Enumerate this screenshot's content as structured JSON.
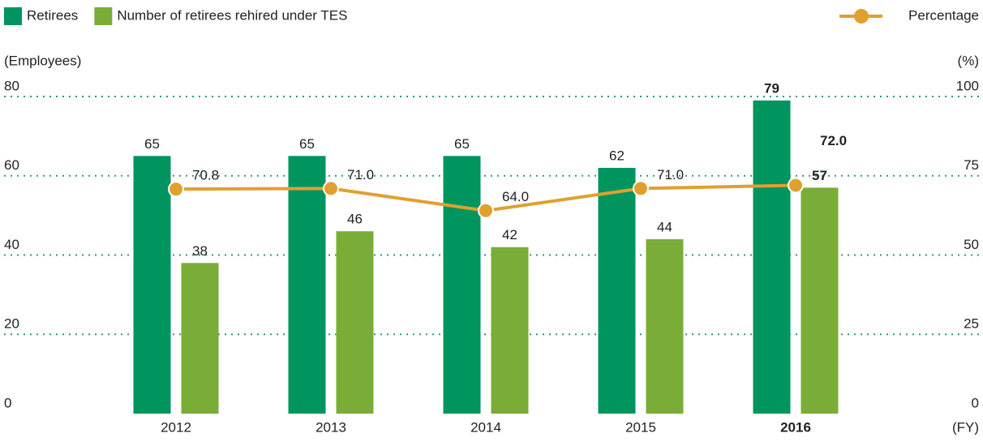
{
  "chart_data": {
    "type": "bar",
    "categories": [
      "2012",
      "2013",
      "2014",
      "2015",
      "2016"
    ],
    "series": [
      {
        "name": "Retirees",
        "color": "#00945f",
        "values": [
          65,
          65,
          65,
          62,
          79
        ]
      },
      {
        "name": "Number of retirees rehired under TES",
        "color": "#7aad37",
        "values": [
          38,
          46,
          42,
          44,
          57
        ]
      },
      {
        "name": "Percentage",
        "type": "line",
        "axis": "y2",
        "color": "#e0a030",
        "values": [
          70.8,
          71.0,
          64.0,
          71.0,
          72.0
        ],
        "value_labels": [
          "70.8",
          "71.0",
          "64.0",
          "71.0",
          "72.0"
        ]
      }
    ],
    "ylabel": "(Employees)",
    "y2label": "(%)",
    "xlabel": "(FY)",
    "ylim": [
      0,
      80
    ],
    "yticks": [
      0,
      20,
      40,
      60,
      80
    ],
    "y2lim": [
      0,
      100
    ],
    "y2ticks": [
      0,
      25,
      50,
      75,
      100
    ],
    "grid": true,
    "legend": "top"
  }
}
